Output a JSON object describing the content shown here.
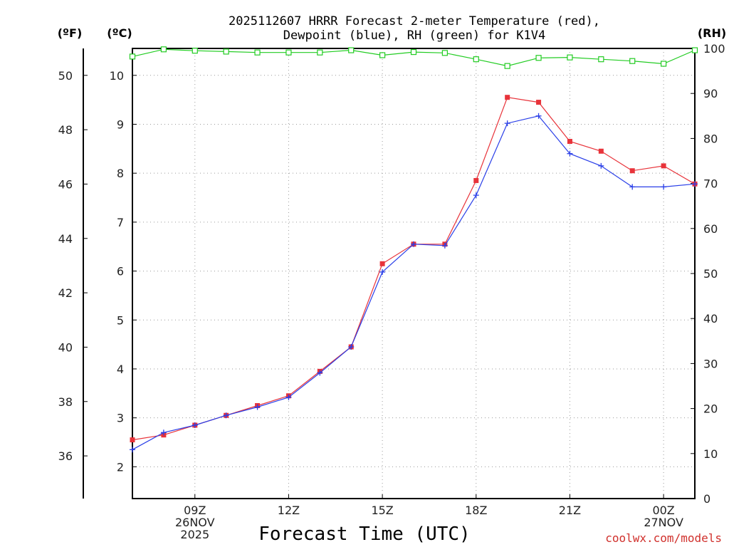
{
  "chart_data": {
    "type": "line",
    "title": "2025112607 HRRR Forecast 2-meter Temperature (red),",
    "subtitle": "Dewpoint (blue), RH (green) for K1V4",
    "xlabel": "Forecast Time (UTC)",
    "credit": "coolwx.com/models",
    "axes_units": {
      "fahrenheit": "(ºF)",
      "celsius": "(ºC)",
      "rh": "(RH)"
    },
    "x_ticks": [
      {
        "hour": 9,
        "lines": [
          "09Z",
          "26NOV",
          "2025"
        ]
      },
      {
        "hour": 12,
        "lines": [
          "12Z"
        ]
      },
      {
        "hour": 15,
        "lines": [
          "15Z"
        ]
      },
      {
        "hour": 18,
        "lines": [
          "18Z"
        ]
      },
      {
        "hour": 21,
        "lines": [
          "21Z"
        ]
      },
      {
        "hour": 24,
        "lines": [
          "00Z",
          "27NOV"
        ]
      }
    ],
    "xlim": [
      7,
      25
    ],
    "x": [
      7,
      8,
      9,
      10,
      11,
      12,
      13,
      14,
      15,
      16,
      17,
      18,
      19,
      20,
      21,
      22,
      23,
      24,
      25
    ],
    "celsius_ticks": [
      2,
      3,
      4,
      5,
      6,
      7,
      8,
      9,
      10
    ],
    "ylim_celsius": [
      1.35,
      10.55
    ],
    "fahrenheit_ticks": [
      36,
      38,
      40,
      42,
      44,
      46,
      48,
      50
    ],
    "rh_ticks": [
      0,
      10,
      20,
      30,
      40,
      50,
      60,
      70,
      80,
      90,
      100
    ],
    "ylim_rh": [
      0,
      100
    ],
    "series": [
      {
        "name": "Temperature",
        "unit": "C",
        "color": "#e8333a",
        "marker": "filled-square",
        "values": [
          2.55,
          2.65,
          2.85,
          3.05,
          3.25,
          3.45,
          3.95,
          4.45,
          6.15,
          6.55,
          6.55,
          7.85,
          9.55,
          9.45,
          8.65,
          8.45,
          8.05,
          8.15,
          7.78
        ]
      },
      {
        "name": "Dewpoint",
        "unit": "C",
        "color": "#2a3fe8",
        "marker": "plus",
        "values": [
          2.35,
          2.7,
          2.85,
          3.05,
          3.22,
          3.42,
          3.92,
          4.45,
          5.98,
          6.55,
          6.52,
          7.55,
          9.02,
          9.17,
          8.4,
          8.15,
          7.72,
          7.72,
          7.78
        ]
      },
      {
        "name": "RH",
        "unit": "%",
        "color": "#22cc22",
        "marker": "open-square",
        "values": [
          98.2,
          99.8,
          99.5,
          99.3,
          99.1,
          99.1,
          99.1,
          99.6,
          98.5,
          99.2,
          99.0,
          97.6,
          96.1,
          97.9,
          98.0,
          97.6,
          97.2,
          96.6,
          99.6
        ]
      }
    ]
  }
}
